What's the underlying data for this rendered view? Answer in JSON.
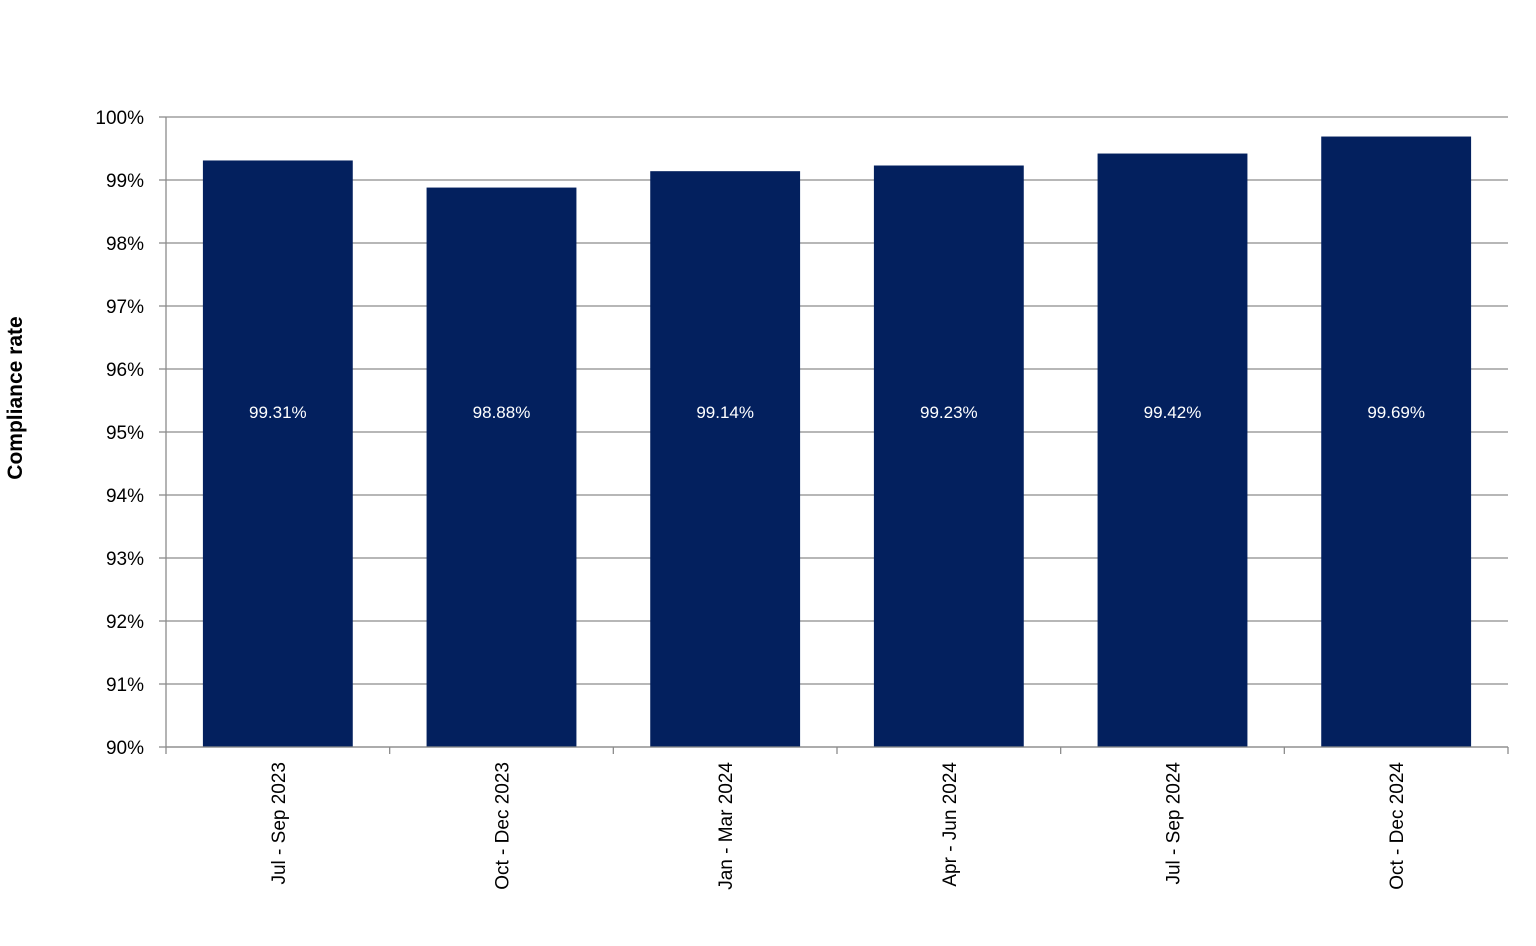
{
  "chart_data": {
    "type": "bar",
    "title": "",
    "xlabel": "",
    "ylabel": "Compliance rate",
    "ylim": [
      90,
      100
    ],
    "y_tick_step": 1,
    "y_tick_suffix": "%",
    "grid": true,
    "legend": "none",
    "bar_color": "#03205E",
    "gridline_color": "#8c8c8c",
    "data_label_color": "#ffffff",
    "categories": [
      "Jul - Sep 2023",
      "Oct - Dec 2023",
      "Jan - Mar 2024",
      "Apr - Jun 2024",
      "Jul - Sep 2024",
      "Oct - Dec 2024"
    ],
    "values": [
      99.31,
      98.88,
      99.14,
      99.23,
      99.42,
      99.69
    ],
    "data_labels": [
      "99.31%",
      "98.88%",
      "99.14%",
      "99.23%",
      "99.42%",
      "99.69%"
    ],
    "y_tick_labels": [
      "90%",
      "91%",
      "92%",
      "93%",
      "94%",
      "95%",
      "96%",
      "97%",
      "98%",
      "99%",
      "100%"
    ]
  }
}
